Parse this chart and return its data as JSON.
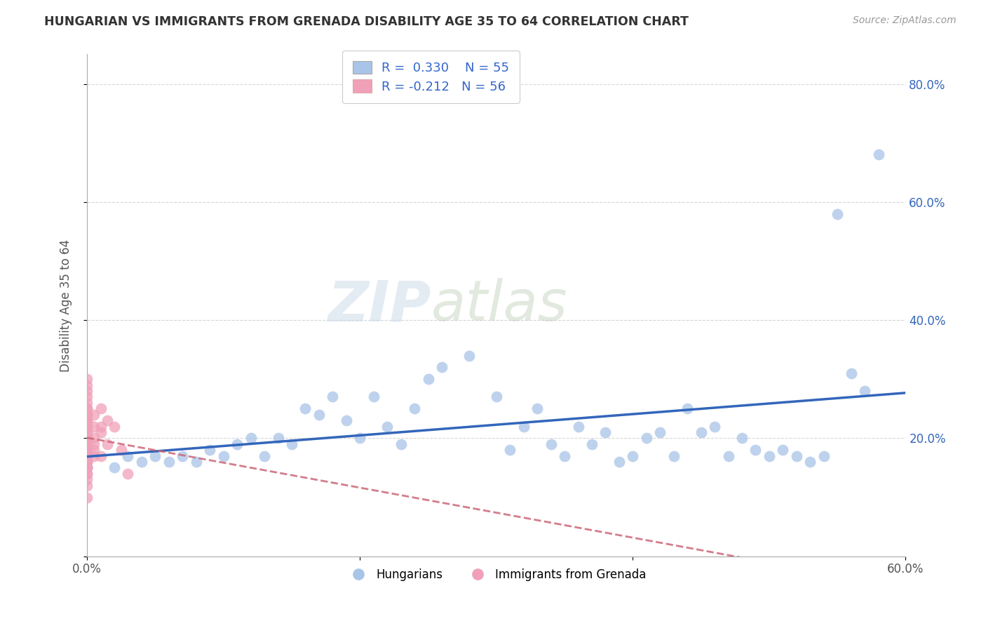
{
  "title": "HUNGARIAN VS IMMIGRANTS FROM GRENADA DISABILITY AGE 35 TO 64 CORRELATION CHART",
  "source": "Source: ZipAtlas.com",
  "xlabel": "",
  "ylabel": "Disability Age 35 to 64",
  "legend_labels": [
    "Hungarians",
    "Immigrants from Grenada"
  ],
  "r_hungarian": 0.33,
  "n_hungarian": 55,
  "r_grenada": -0.212,
  "n_grenada": 56,
  "xlim": [
    0.0,
    0.6
  ],
  "ylim": [
    0.0,
    0.85
  ],
  "color_hungarian": "#a8c4e8",
  "color_grenada": "#f0a0b8",
  "trendline_hungarian": "#3366bb",
  "trendline_grenada": "#cc6677",
  "watermark_zip": "ZIP",
  "watermark_atlas": "atlas",
  "background_color": "#ffffff",
  "hungarian_x": [
    0.02,
    0.03,
    0.04,
    0.05,
    0.06,
    0.07,
    0.08,
    0.09,
    0.1,
    0.11,
    0.12,
    0.13,
    0.14,
    0.15,
    0.16,
    0.17,
    0.18,
    0.19,
    0.2,
    0.21,
    0.22,
    0.23,
    0.24,
    0.25,
    0.26,
    0.28,
    0.3,
    0.31,
    0.32,
    0.33,
    0.34,
    0.35,
    0.36,
    0.37,
    0.38,
    0.39,
    0.4,
    0.41,
    0.42,
    0.43,
    0.44,
    0.45,
    0.46,
    0.47,
    0.48,
    0.49,
    0.5,
    0.51,
    0.52,
    0.53,
    0.54,
    0.55,
    0.56,
    0.57,
    0.58
  ],
  "hungarian_y": [
    0.15,
    0.17,
    0.16,
    0.17,
    0.16,
    0.17,
    0.16,
    0.18,
    0.17,
    0.19,
    0.2,
    0.17,
    0.2,
    0.19,
    0.25,
    0.24,
    0.27,
    0.23,
    0.2,
    0.27,
    0.22,
    0.19,
    0.25,
    0.3,
    0.32,
    0.34,
    0.27,
    0.18,
    0.22,
    0.25,
    0.19,
    0.17,
    0.22,
    0.19,
    0.21,
    0.16,
    0.17,
    0.2,
    0.21,
    0.17,
    0.25,
    0.21,
    0.22,
    0.17,
    0.2,
    0.18,
    0.17,
    0.18,
    0.17,
    0.16,
    0.17,
    0.58,
    0.31,
    0.28,
    0.68
  ],
  "grenada_x": [
    0.0,
    0.0,
    0.0,
    0.0,
    0.0,
    0.0,
    0.0,
    0.0,
    0.0,
    0.0,
    0.0,
    0.0,
    0.0,
    0.0,
    0.0,
    0.0,
    0.0,
    0.0,
    0.0,
    0.0,
    0.0,
    0.0,
    0.0,
    0.0,
    0.0,
    0.0,
    0.0,
    0.0,
    0.0,
    0.0,
    0.0,
    0.0,
    0.0,
    0.0,
    0.0,
    0.0,
    0.0,
    0.0,
    0.0,
    0.0,
    0.0,
    0.005,
    0.005,
    0.005,
    0.005,
    0.005,
    0.005,
    0.01,
    0.01,
    0.01,
    0.01,
    0.015,
    0.015,
    0.02,
    0.025,
    0.03
  ],
  "grenada_y": [
    0.1,
    0.12,
    0.13,
    0.14,
    0.14,
    0.15,
    0.15,
    0.15,
    0.16,
    0.16,
    0.16,
    0.17,
    0.17,
    0.17,
    0.18,
    0.18,
    0.18,
    0.19,
    0.19,
    0.2,
    0.2,
    0.21,
    0.21,
    0.22,
    0.22,
    0.23,
    0.23,
    0.24,
    0.24,
    0.25,
    0.26,
    0.27,
    0.28,
    0.29,
    0.3,
    0.22,
    0.23,
    0.18,
    0.2,
    0.24,
    0.25,
    0.17,
    0.18,
    0.19,
    0.22,
    0.24,
    0.2,
    0.21,
    0.17,
    0.22,
    0.25,
    0.19,
    0.23,
    0.22,
    0.18,
    0.14
  ]
}
